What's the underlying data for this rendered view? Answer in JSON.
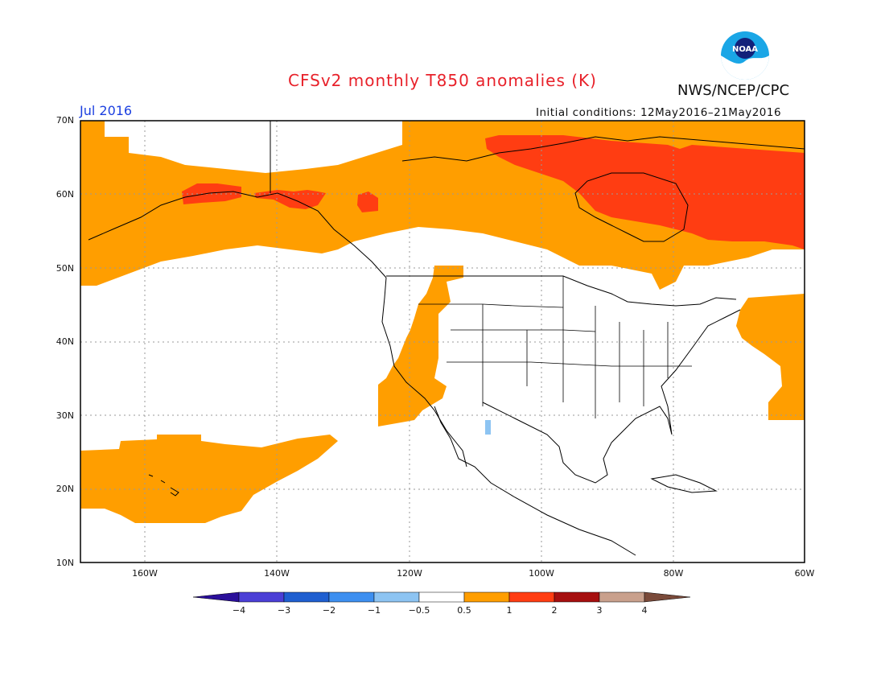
{
  "title": "CFSv2 monthly T850 anomalies (K)",
  "agency": "NWS/NCEP/CPC",
  "logo_text": "NOAA",
  "forecast_month": "Jul 2016",
  "initial_conditions": "Initial conditions: 12May2016–21May2016",
  "map": {
    "lat_labels": [
      "70N",
      "60N",
      "50N",
      "40N",
      "30N",
      "20N",
      "10N"
    ],
    "lon_labels": [
      "160W",
      "140W",
      "120W",
      "100W",
      "80W",
      "60W"
    ],
    "lat_range": [
      10,
      70
    ],
    "lon_range": [
      -172,
      -60
    ],
    "grid": "dotted"
  },
  "colorbar": {
    "labels": [
      "−4",
      "−3",
      "−2",
      "−1",
      "−0.5",
      "0.5",
      "1",
      "2",
      "3",
      "4"
    ],
    "colors": [
      "#2a0f9a",
      "#4b3fd6",
      "#1f5fd0",
      "#3d8ff0",
      "#8dc4f2",
      "#ffffff",
      "#ff9e00",
      "#ff3d12",
      "#a60f0f",
      "#c9a08c",
      "#7a4a3a"
    ]
  },
  "colors": {
    "title": "#e8212a",
    "month": "#1b3fe0",
    "anom_0_5_to_1": "#ff9e00",
    "anom_1_to_2": "#ff3d12",
    "anom_neg_1_to_neg_0_5": "#8dc4f2"
  }
}
